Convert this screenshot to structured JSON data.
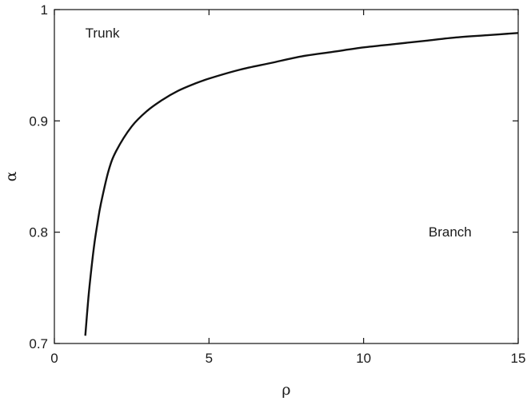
{
  "chart_data": {
    "type": "line",
    "title": "",
    "xlabel": "ρ",
    "ylabel": "α",
    "xlim": [
      0,
      15
    ],
    "ylim": [
      0.7,
      1.0
    ],
    "x_ticks": [
      0,
      5,
      10,
      15
    ],
    "x_tick_labels": [
      "0",
      "5",
      "10",
      "15"
    ],
    "y_ticks": [
      0.7,
      0.8,
      0.9,
      1.0
    ],
    "y_tick_labels": [
      "0.7",
      "0.8",
      "0.9",
      "1"
    ],
    "grid": false,
    "series": [
      {
        "color": "#111111",
        "x": [
          1.0,
          1.1,
          1.2,
          1.3,
          1.4,
          1.5,
          1.75,
          2.0,
          2.5,
          3.0,
          3.5,
          4.0,
          4.5,
          5.0,
          6.0,
          7.0,
          8.0,
          9.0,
          10.0,
          11.0,
          12.0,
          13.0,
          14.0,
          15.0
        ],
        "y": [
          0.707,
          0.741,
          0.768,
          0.791,
          0.809,
          0.825,
          0.855,
          0.873,
          0.895,
          0.909,
          0.919,
          0.927,
          0.933,
          0.938,
          0.946,
          0.952,
          0.958,
          0.962,
          0.966,
          0.969,
          0.972,
          0.975,
          0.977,
          0.979
        ]
      }
    ],
    "annotations": [
      {
        "text": "Trunk",
        "x": 1.0,
        "y": 0.975
      },
      {
        "text": "Branch",
        "x": 12.1,
        "y": 0.796
      }
    ]
  }
}
